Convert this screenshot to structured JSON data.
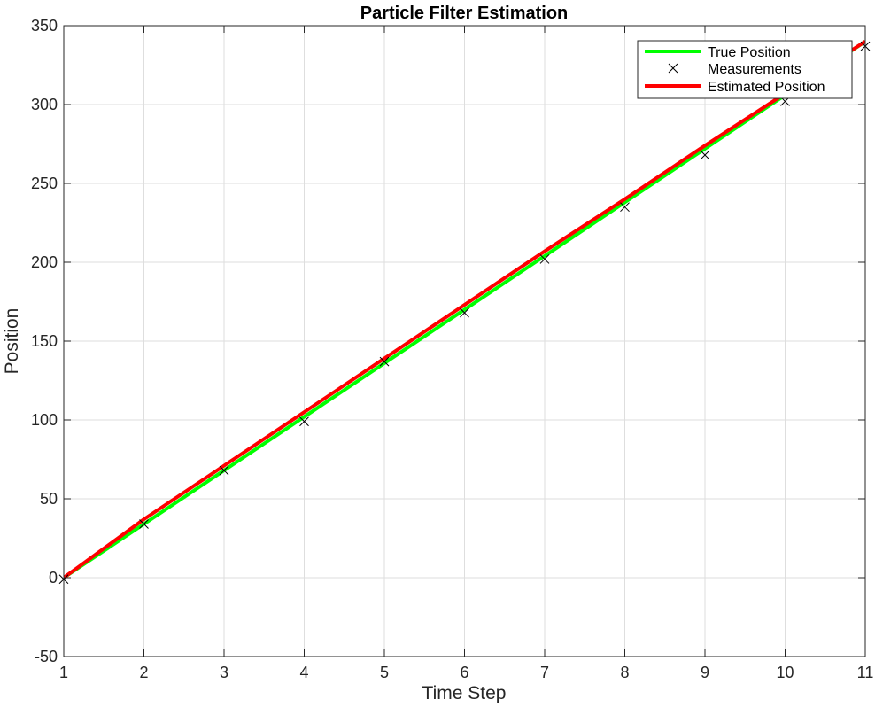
{
  "chart_data": {
    "type": "line",
    "title": "Particle Filter Estimation",
    "xlabel": "Time Step",
    "ylabel": "Position",
    "xlim": [
      1,
      11
    ],
    "ylim": [
      -50,
      350
    ],
    "xticks": [
      1,
      2,
      3,
      4,
      5,
      6,
      7,
      8,
      9,
      10,
      11
    ],
    "yticks": [
      -50,
      0,
      50,
      100,
      150,
      200,
      250,
      300,
      350
    ],
    "grid": true,
    "legend_position": "top-right",
    "x": [
      1,
      2,
      3,
      4,
      5,
      6,
      7,
      8,
      9,
      10,
      11
    ],
    "series": [
      {
        "name": "True Position",
        "style": "line",
        "color": "#00ff00",
        "values": [
          0,
          34,
          68,
          102,
          136,
          170,
          204,
          238,
          272,
          306,
          340
        ]
      },
      {
        "name": "Measurements",
        "style": "marker-x",
        "color": "#000000",
        "values": [
          -1,
          34,
          68,
          99,
          137,
          168,
          202,
          235,
          268,
          302,
          337
        ]
      },
      {
        "name": "Estimated Position",
        "style": "line",
        "color": "#ff0000",
        "values": [
          0,
          37,
          71,
          105,
          139,
          173,
          207,
          240,
          274,
          307,
          340
        ]
      }
    ]
  }
}
